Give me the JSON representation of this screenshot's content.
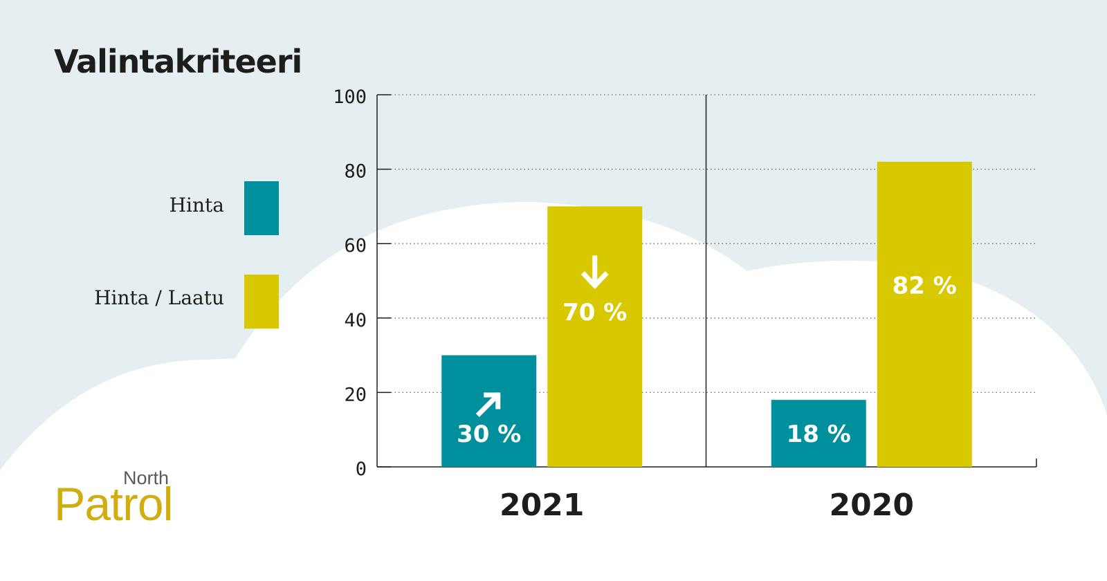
{
  "colors": {
    "background": "#e5eef1",
    "hinta": "#008f9c",
    "hinta_laatu": "#d8c800",
    "text": "#1d1d1b",
    "logo": "#d0ae12"
  },
  "chart_data": {
    "type": "bar",
    "title": "Valintakriteeri",
    "categories": [
      "2021",
      "2020"
    ],
    "series": [
      {
        "name": "Hinta",
        "values": [
          30,
          18
        ],
        "labels": [
          "30 %",
          "18 %"
        ],
        "color": "#008f9c"
      },
      {
        "name": "Hinta / Laatu",
        "values": [
          70,
          82
        ],
        "labels": [
          "70 %",
          "82 %"
        ],
        "color": "#d8c800"
      }
    ],
    "ylim": [
      0,
      100
    ],
    "yticks": [
      0,
      20,
      40,
      60,
      80,
      100
    ],
    "ytick_labels": [
      "0",
      "20",
      "40",
      "60",
      "80",
      "100"
    ],
    "grid": true,
    "legend_position": "left",
    "annotations": [
      {
        "category": "2021",
        "series": "Hinta",
        "icon": "arrow-up-right-icon"
      },
      {
        "category": "2021",
        "series": "Hinta / Laatu",
        "icon": "arrow-down-icon"
      }
    ]
  },
  "logo": {
    "top": "North",
    "bottom": "Patrol"
  }
}
